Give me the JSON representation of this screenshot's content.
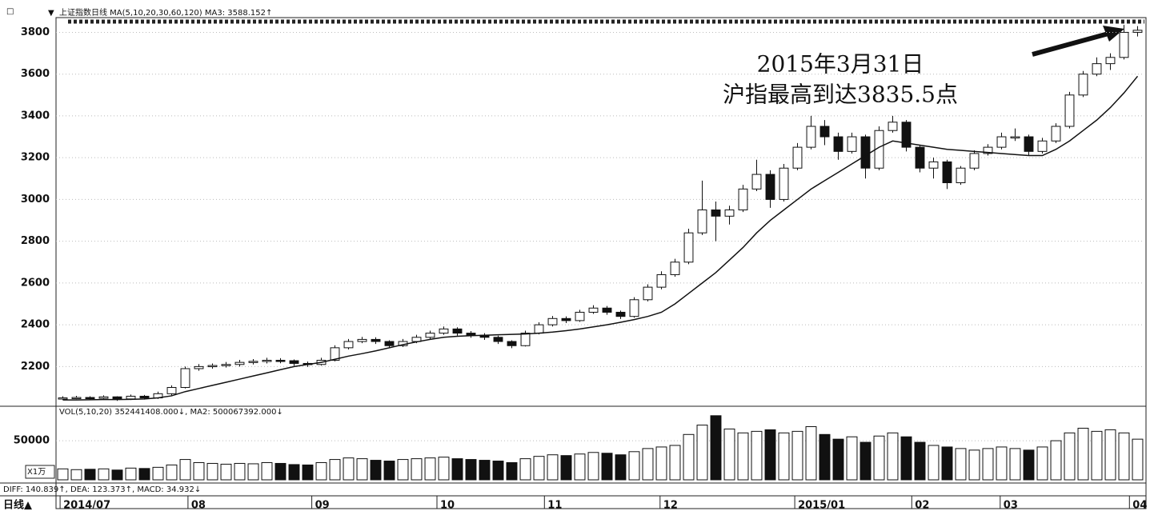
{
  "chart_data": {
    "type": "candlestick",
    "header": "上证指数日线 MA(5,10,20,30,60,120) MA3: 3588.152↑",
    "volume_header": "VOL(5,10,20) 352441408.000↓, MA2: 500067392.000↓",
    "volume_unit": "X1万",
    "macd_header": "DIFF: 140.839↑, DEA: 123.373↑, MACD: 34.932↓",
    "period_label": "日线▲",
    "annotation": [
      "2015年3月31日",
      "沪指最高到达3835.5点"
    ],
    "xlim": [
      0,
      80
    ],
    "xticks": [
      {
        "value": 0.3,
        "label": "2014/07"
      },
      {
        "value": 9.7,
        "label": "08"
      },
      {
        "value": 18.8,
        "label": "09"
      },
      {
        "value": 28,
        "label": "10"
      },
      {
        "value": 35.9,
        "label": "11"
      },
      {
        "value": 44.4,
        "label": "12"
      },
      {
        "value": 54.3,
        "label": "2015/01"
      },
      {
        "value": 62.9,
        "label": "02"
      },
      {
        "value": 69.4,
        "label": "03"
      },
      {
        "value": 78.9,
        "label": "04"
      }
    ],
    "ylim": [
      2010,
      3840
    ],
    "yticks": [
      2200,
      2400,
      2600,
      2800,
      3000,
      3200,
      3400,
      3600,
      3800
    ],
    "grid": true,
    "up_color": "#ffffff",
    "down_color": "#111111",
    "candles": [
      [
        2045,
        2058,
        2040,
        2050
      ],
      [
        2050,
        2060,
        2044,
        2052
      ],
      [
        2052,
        2058,
        2040,
        2048
      ],
      [
        2048,
        2062,
        2042,
        2055
      ],
      [
        2055,
        2058,
        2036,
        2045
      ],
      [
        2045,
        2066,
        2040,
        2058
      ],
      [
        2058,
        2064,
        2042,
        2050
      ],
      [
        2050,
        2080,
        2045,
        2070
      ],
      [
        2070,
        2110,
        2062,
        2100
      ],
      [
        2100,
        2200,
        2095,
        2190
      ],
      [
        2190,
        2212,
        2180,
        2200
      ],
      [
        2200,
        2215,
        2190,
        2205
      ],
      [
        2205,
        2222,
        2195,
        2210
      ],
      [
        2210,
        2232,
        2200,
        2220
      ],
      [
        2220,
        2236,
        2210,
        2225
      ],
      [
        2225,
        2242,
        2215,
        2230
      ],
      [
        2230,
        2240,
        2216,
        2228
      ],
      [
        2228,
        2234,
        2204,
        2215
      ],
      [
        2215,
        2224,
        2198,
        2210
      ],
      [
        2210,
        2242,
        2205,
        2230
      ],
      [
        2230,
        2302,
        2225,
        2290
      ],
      [
        2290,
        2332,
        2282,
        2320
      ],
      [
        2320,
        2342,
        2312,
        2330
      ],
      [
        2330,
        2340,
        2308,
        2320
      ],
      [
        2320,
        2326,
        2288,
        2300
      ],
      [
        2300,
        2332,
        2294,
        2320
      ],
      [
        2320,
        2352,
        2312,
        2340
      ],
      [
        2340,
        2372,
        2332,
        2360
      ],
      [
        2360,
        2392,
        2352,
        2380
      ],
      [
        2380,
        2388,
        2348,
        2360
      ],
      [
        2360,
        2370,
        2338,
        2350
      ],
      [
        2350,
        2360,
        2328,
        2340
      ],
      [
        2340,
        2348,
        2308,
        2320
      ],
      [
        2320,
        2326,
        2288,
        2300
      ],
      [
        2300,
        2372,
        2296,
        2360
      ],
      [
        2360,
        2412,
        2354,
        2400
      ],
      [
        2400,
        2442,
        2392,
        2430
      ],
      [
        2430,
        2440,
        2408,
        2420
      ],
      [
        2420,
        2472,
        2414,
        2460
      ],
      [
        2460,
        2494,
        2452,
        2480
      ],
      [
        2480,
        2490,
        2448,
        2460
      ],
      [
        2460,
        2468,
        2428,
        2440
      ],
      [
        2440,
        2532,
        2434,
        2520
      ],
      [
        2520,
        2594,
        2512,
        2580
      ],
      [
        2580,
        2656,
        2570,
        2640
      ],
      [
        2640,
        2716,
        2630,
        2700
      ],
      [
        2700,
        2860,
        2690,
        2840
      ],
      [
        2840,
        3090,
        2830,
        2950
      ],
      [
        2950,
        2990,
        2800,
        2920
      ],
      [
        2920,
        2970,
        2880,
        2950
      ],
      [
        2950,
        3070,
        2940,
        3050
      ],
      [
        3050,
        3190,
        3040,
        3120
      ],
      [
        3120,
        3140,
        2960,
        3000
      ],
      [
        3000,
        3170,
        2990,
        3150
      ],
      [
        3150,
        3270,
        3140,
        3250
      ],
      [
        3250,
        3400,
        3240,
        3350
      ],
      [
        3350,
        3380,
        3260,
        3300
      ],
      [
        3300,
        3320,
        3190,
        3230
      ],
      [
        3230,
        3320,
        3220,
        3300
      ],
      [
        3300,
        3310,
        3100,
        3150
      ],
      [
        3150,
        3350,
        3140,
        3330
      ],
      [
        3330,
        3400,
        3320,
        3370
      ],
      [
        3370,
        3380,
        3230,
        3250
      ],
      [
        3250,
        3260,
        3130,
        3150
      ],
      [
        3150,
        3200,
        3100,
        3180
      ],
      [
        3180,
        3190,
        3050,
        3080
      ],
      [
        3080,
        3160,
        3070,
        3150
      ],
      [
        3150,
        3235,
        3140,
        3220
      ],
      [
        3220,
        3265,
        3210,
        3250
      ],
      [
        3250,
        3320,
        3240,
        3300
      ],
      [
        3300,
        3340,
        3280,
        3300
      ],
      [
        3300,
        3310,
        3210,
        3230
      ],
      [
        3230,
        3295,
        3220,
        3280
      ],
      [
        3280,
        3365,
        3270,
        3350
      ],
      [
        3350,
        3515,
        3340,
        3500
      ],
      [
        3500,
        3615,
        3490,
        3600
      ],
      [
        3600,
        3680,
        3590,
        3650
      ],
      [
        3650,
        3700,
        3620,
        3680
      ],
      [
        3680,
        3835.5,
        3670,
        3800
      ],
      [
        3800,
        3830,
        3780,
        3810
      ]
    ],
    "ma": {
      "color": "#111111",
      "values": [
        2040,
        2040,
        2041,
        2042,
        2042,
        2043,
        2045,
        2050,
        2060,
        2080,
        2095,
        2110,
        2125,
        2140,
        2155,
        2170,
        2185,
        2200,
        2210,
        2220,
        2235,
        2250,
        2262,
        2275,
        2290,
        2305,
        2318,
        2330,
        2340,
        2345,
        2348,
        2350,
        2352,
        2354,
        2356,
        2360,
        2365,
        2372,
        2380,
        2390,
        2400,
        2412,
        2425,
        2440,
        2460,
        2500,
        2550,
        2600,
        2650,
        2710,
        2770,
        2840,
        2900,
        2950,
        3000,
        3050,
        3090,
        3130,
        3170,
        3210,
        3250,
        3280,
        3270,
        3260,
        3250,
        3240,
        3235,
        3230,
        3225,
        3220,
        3215,
        3210,
        3210,
        3240,
        3280,
        3330,
        3380,
        3440,
        3510,
        3590
      ]
    },
    "volume": {
      "ylim": [
        0,
        90000
      ],
      "yticks": [
        50000
      ],
      "values": [
        14000,
        13000,
        13500,
        14000,
        12500,
        15000,
        14500,
        16000,
        19000,
        26000,
        22000,
        21000,
        20000,
        21000,
        20500,
        22000,
        21000,
        19500,
        19000,
        22000,
        26000,
        28000,
        27000,
        25000,
        24000,
        26000,
        27000,
        28000,
        29000,
        27000,
        26000,
        25000,
        24000,
        22000,
        27000,
        30000,
        32000,
        31000,
        33000,
        35000,
        34000,
        32000,
        36000,
        40000,
        42000,
        44000,
        58000,
        70000,
        82000,
        65000,
        60000,
        62000,
        64000,
        60000,
        62000,
        68000,
        58000,
        52000,
        55000,
        48000,
        56000,
        60000,
        55000,
        48000,
        44000,
        42000,
        40000,
        38000,
        40000,
        42000,
        40000,
        38000,
        42000,
        50000,
        60000,
        66000,
        62000,
        64000,
        60000,
        52000
      ]
    }
  }
}
